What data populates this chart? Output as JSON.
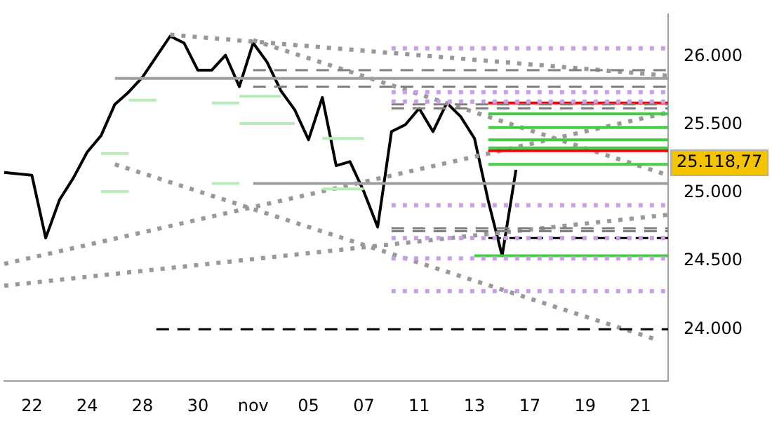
{
  "chart_data": {
    "type": "line",
    "marker": "none",
    "grid": false,
    "categories": [
      null,
      null,
      "22",
      null,
      null,
      null,
      "24",
      null,
      null,
      null,
      "28",
      null,
      null,
      null,
      "30",
      null,
      null,
      null,
      "nov",
      null,
      null,
      null,
      "05",
      null,
      null,
      null,
      "07",
      null,
      null,
      null,
      "11",
      null,
      null,
      null,
      "13",
      null,
      null,
      null,
      "17",
      null,
      null,
      null,
      "19",
      null,
      null,
      null,
      "21",
      null,
      null
    ],
    "ylim": [
      23620,
      26310
    ],
    "yticks": [
      {
        "value": 24000,
        "label": "24.000"
      },
      {
        "value": 24500,
        "label": "24.500"
      },
      {
        "value": 25000,
        "label": "25.000"
      },
      {
        "value": 25500,
        "label": "25.500"
      },
      {
        "value": 26000,
        "label": "26.000"
      }
    ],
    "annotations": [
      "25.118,77"
    ],
    "series": [
      {
        "type": "line",
        "color": "#c9a0e6",
        "line_style": "dotted",
        "values": [
          null,
          null,
          null,
          null,
          null,
          null,
          null,
          null,
          null,
          null,
          null,
          null,
          null,
          null,
          null,
          null,
          null,
          null,
          null,
          null,
          null,
          null,
          null,
          null,
          null,
          null,
          null,
          null,
          26060,
          null,
          null,
          null,
          null,
          null,
          null,
          null,
          null,
          null,
          null,
          null,
          null,
          null,
          null,
          null,
          null,
          null,
          null,
          null,
          26060
        ]
      },
      {
        "type": "line",
        "color": "#c9a0e6",
        "line_style": "dotted",
        "values": [
          null,
          null,
          null,
          null,
          null,
          null,
          null,
          null,
          null,
          null,
          null,
          null,
          null,
          null,
          null,
          null,
          null,
          null,
          null,
          null,
          null,
          null,
          null,
          null,
          null,
          null,
          null,
          null,
          25740,
          null,
          null,
          null,
          null,
          null,
          null,
          null,
          null,
          null,
          null,
          null,
          null,
          null,
          null,
          null,
          null,
          null,
          null,
          null,
          25740
        ]
      },
      {
        "type": "line",
        "color": "#c9a0e6",
        "line_style": "dotted",
        "values": [
          null,
          null,
          null,
          null,
          null,
          null,
          null,
          null,
          null,
          null,
          null,
          null,
          null,
          null,
          null,
          null,
          null,
          null,
          null,
          null,
          null,
          null,
          null,
          null,
          null,
          null,
          null,
          null,
          25670,
          null,
          null,
          null,
          null,
          null,
          null,
          null,
          null,
          null,
          null,
          null,
          null,
          null,
          null,
          null,
          null,
          null,
          null,
          null,
          25670
        ]
      },
      {
        "type": "line",
        "color": "#c9a0e6",
        "line_style": "dotted",
        "values": [
          null,
          null,
          null,
          null,
          null,
          null,
          null,
          null,
          null,
          null,
          null,
          null,
          null,
          null,
          null,
          null,
          null,
          null,
          null,
          null,
          null,
          null,
          null,
          null,
          null,
          null,
          null,
          null,
          24910,
          null,
          null,
          null,
          null,
          null,
          null,
          null,
          null,
          null,
          null,
          null,
          null,
          null,
          null,
          null,
          null,
          null,
          null,
          null,
          24910
        ]
      },
      {
        "type": "line",
        "color": "#c9a0e6",
        "line_style": "dotted",
        "values": [
          null,
          null,
          null,
          null,
          null,
          null,
          null,
          null,
          null,
          null,
          null,
          null,
          null,
          null,
          null,
          null,
          null,
          null,
          null,
          null,
          null,
          null,
          null,
          null,
          null,
          null,
          null,
          null,
          24670,
          null,
          null,
          null,
          null,
          null,
          null,
          null,
          null,
          null,
          null,
          null,
          null,
          null,
          null,
          null,
          null,
          null,
          null,
          null,
          24670
        ]
      },
      {
        "type": "line",
        "color": "#c9a0e6",
        "line_style": "dotted",
        "values": [
          null,
          null,
          null,
          null,
          null,
          null,
          null,
          null,
          null,
          null,
          null,
          null,
          null,
          null,
          null,
          null,
          null,
          null,
          null,
          null,
          null,
          null,
          null,
          null,
          null,
          null,
          null,
          null,
          24520,
          null,
          null,
          null,
          null,
          null,
          null,
          null,
          null,
          null,
          null,
          null,
          null,
          null,
          null,
          null,
          null,
          null,
          null,
          null,
          24520
        ]
      },
      {
        "type": "line",
        "color": "#c9a0e6",
        "line_style": "dotted",
        "values": [
          null,
          null,
          null,
          null,
          null,
          null,
          null,
          null,
          null,
          null,
          null,
          null,
          null,
          null,
          null,
          null,
          null,
          null,
          null,
          null,
          null,
          null,
          null,
          null,
          null,
          null,
          null,
          null,
          24280,
          null,
          null,
          null,
          null,
          null,
          null,
          null,
          null,
          null,
          null,
          null,
          null,
          null,
          null,
          null,
          null,
          null,
          null,
          null,
          24280
        ]
      },
      {
        "type": "line",
        "color": "#808080",
        "line_style": "dashed",
        "values": [
          null,
          null,
          null,
          null,
          null,
          null,
          null,
          null,
          null,
          null,
          null,
          null,
          null,
          null,
          null,
          null,
          null,
          null,
          25900,
          null,
          null,
          null,
          null,
          null,
          null,
          null,
          null,
          null,
          null,
          null,
          null,
          null,
          null,
          null,
          null,
          null,
          null,
          null,
          null,
          null,
          null,
          null,
          null,
          null,
          null,
          null,
          null,
          null,
          25900
        ]
      },
      {
        "type": "line",
        "color": "#808080",
        "line_style": "dashed",
        "values": [
          null,
          null,
          null,
          null,
          null,
          null,
          null,
          null,
          null,
          null,
          null,
          null,
          null,
          null,
          null,
          null,
          null,
          null,
          25780,
          null,
          null,
          null,
          null,
          null,
          null,
          null,
          null,
          null,
          null,
          null,
          null,
          null,
          null,
          null,
          null,
          null,
          null,
          null,
          null,
          null,
          null,
          null,
          null,
          null,
          null,
          null,
          null,
          null,
          25780
        ]
      },
      {
        "type": "line",
        "color": "#808080",
        "line_style": "dashed",
        "values": [
          null,
          null,
          null,
          null,
          null,
          null,
          null,
          null,
          null,
          null,
          null,
          null,
          null,
          null,
          null,
          null,
          null,
          null,
          null,
          null,
          null,
          null,
          null,
          null,
          null,
          null,
          null,
          null,
          25650,
          null,
          null,
          null,
          null,
          null,
          null,
          null,
          null,
          null,
          null,
          null,
          null,
          null,
          null,
          null,
          null,
          null,
          null,
          null,
          25650
        ]
      },
      {
        "type": "line",
        "color": "#808080",
        "line_style": "dashed",
        "values": [
          null,
          null,
          null,
          null,
          null,
          null,
          null,
          null,
          null,
          null,
          null,
          null,
          null,
          null,
          null,
          null,
          null,
          null,
          null,
          null,
          null,
          null,
          null,
          null,
          null,
          null,
          null,
          null,
          25620,
          null,
          null,
          null,
          null,
          null,
          null,
          null,
          null,
          null,
          null,
          null,
          null,
          null,
          null,
          null,
          null,
          null,
          null,
          null,
          25620
        ]
      },
      {
        "type": "line",
        "color": "#808080",
        "line_style": "dashed",
        "values": [
          null,
          null,
          null,
          null,
          null,
          null,
          null,
          null,
          null,
          null,
          null,
          null,
          null,
          null,
          null,
          null,
          null,
          null,
          null,
          null,
          null,
          null,
          null,
          null,
          null,
          null,
          null,
          null,
          24740,
          null,
          null,
          null,
          null,
          null,
          null,
          null,
          null,
          null,
          null,
          null,
          null,
          null,
          null,
          null,
          null,
          null,
          null,
          null,
          24740
        ]
      },
      {
        "type": "line",
        "color": "#808080",
        "line_style": "dashed",
        "values": [
          null,
          null,
          null,
          null,
          null,
          null,
          null,
          null,
          null,
          null,
          null,
          null,
          null,
          null,
          null,
          null,
          null,
          null,
          null,
          null,
          null,
          null,
          null,
          null,
          null,
          null,
          null,
          null,
          24720,
          null,
          null,
          null,
          null,
          null,
          null,
          null,
          null,
          null,
          null,
          null,
          null,
          null,
          null,
          null,
          null,
          null,
          null,
          null,
          24720
        ]
      },
      {
        "type": "line",
        "color": "#a0a0a0",
        "line_style": "solid",
        "values": [
          null,
          null,
          null,
          null,
          null,
          null,
          null,
          null,
          25840,
          null,
          null,
          null,
          null,
          null,
          null,
          null,
          null,
          null,
          null,
          null,
          null,
          null,
          null,
          null,
          null,
          null,
          null,
          null,
          null,
          null,
          null,
          null,
          null,
          null,
          null,
          null,
          null,
          null,
          null,
          null,
          null,
          null,
          null,
          null,
          null,
          null,
          null,
          null,
          25840
        ]
      },
      {
        "type": "line",
        "color": "#a0a0a0",
        "line_style": "solid",
        "values": [
          null,
          null,
          null,
          null,
          null,
          null,
          null,
          null,
          null,
          null,
          null,
          null,
          null,
          null,
          null,
          null,
          null,
          null,
          25070,
          null,
          null,
          null,
          null,
          null,
          null,
          null,
          null,
          null,
          null,
          null,
          null,
          null,
          null,
          null,
          null,
          null,
          null,
          null,
          null,
          null,
          null,
          null,
          null,
          null,
          null,
          null,
          null,
          null,
          25070
        ]
      },
      {
        "type": "line",
        "color": "#000000",
        "line_style": "dashed",
        "values": [
          null,
          null,
          null,
          null,
          null,
          null,
          null,
          null,
          null,
          null,
          null,
          24000,
          null,
          null,
          null,
          null,
          null,
          null,
          null,
          null,
          null,
          null,
          null,
          null,
          null,
          null,
          null,
          null,
          null,
          null,
          null,
          null,
          null,
          null,
          null,
          null,
          null,
          null,
          null,
          null,
          null,
          null,
          null,
          null,
          null,
          null,
          null,
          null,
          24000
        ]
      },
      {
        "type": "line",
        "color": "#000000",
        "line_style": "dashed",
        "values": [
          null,
          null,
          null,
          null,
          null,
          null,
          null,
          null,
          null,
          null,
          null,
          null,
          null,
          null,
          null,
          null,
          null,
          null,
          null,
          null,
          null,
          null,
          null,
          null,
          null,
          null,
          null,
          null,
          null,
          null,
          null,
          null,
          null,
          null,
          null,
          24670,
          null,
          null,
          null,
          null,
          null,
          null,
          null,
          null,
          null,
          null,
          null,
          null,
          24670
        ]
      },
      {
        "type": "line",
        "color": "#44cc44",
        "line_style": "solid",
        "values": [
          null,
          null,
          null,
          null,
          null,
          null,
          null,
          null,
          null,
          null,
          null,
          null,
          null,
          null,
          null,
          null,
          null,
          null,
          null,
          null,
          null,
          null,
          null,
          null,
          null,
          null,
          null,
          null,
          null,
          null,
          null,
          null,
          null,
          null,
          null,
          25580,
          null,
          null,
          null,
          null,
          null,
          null,
          null,
          null,
          null,
          null,
          null,
          null,
          25580
        ]
      },
      {
        "type": "line",
        "color": "#44cc44",
        "line_style": "solid",
        "values": [
          null,
          null,
          null,
          null,
          null,
          null,
          null,
          null,
          null,
          null,
          null,
          null,
          null,
          null,
          null,
          null,
          null,
          null,
          null,
          null,
          null,
          null,
          null,
          null,
          null,
          null,
          null,
          null,
          null,
          null,
          null,
          null,
          null,
          null,
          null,
          25480,
          null,
          null,
          null,
          null,
          null,
          null,
          null,
          null,
          null,
          null,
          null,
          null,
          25480
        ]
      },
      {
        "type": "line",
        "color": "#44cc44",
        "line_style": "solid",
        "values": [
          null,
          null,
          null,
          null,
          null,
          null,
          null,
          null,
          null,
          null,
          null,
          null,
          null,
          null,
          null,
          null,
          null,
          null,
          null,
          null,
          null,
          null,
          null,
          null,
          null,
          null,
          null,
          null,
          null,
          null,
          null,
          null,
          null,
          null,
          null,
          25390,
          null,
          null,
          null,
          null,
          null,
          null,
          null,
          null,
          null,
          null,
          null,
          null,
          25390
        ]
      },
      {
        "type": "line",
        "color": "#44cc44",
        "line_style": "solid",
        "values": [
          null,
          null,
          null,
          null,
          null,
          null,
          null,
          null,
          null,
          null,
          null,
          null,
          null,
          null,
          null,
          null,
          null,
          null,
          null,
          null,
          null,
          null,
          null,
          null,
          null,
          null,
          null,
          null,
          null,
          null,
          null,
          null,
          null,
          null,
          null,
          25330,
          null,
          null,
          null,
          null,
          null,
          null,
          null,
          null,
          null,
          null,
          null,
          null,
          25330
        ]
      },
      {
        "type": "line",
        "color": "#44cc44",
        "line_style": "solid",
        "values": [
          null,
          null,
          null,
          null,
          null,
          null,
          null,
          null,
          null,
          null,
          null,
          null,
          null,
          null,
          null,
          null,
          null,
          null,
          null,
          null,
          null,
          null,
          null,
          null,
          null,
          null,
          null,
          null,
          null,
          null,
          null,
          null,
          null,
          null,
          null,
          25210,
          null,
          null,
          null,
          null,
          null,
          null,
          null,
          null,
          null,
          null,
          null,
          null,
          25210
        ]
      },
      {
        "type": "line",
        "color": "#44cc44",
        "line_style": "solid",
        "values": [
          null,
          null,
          null,
          null,
          null,
          null,
          null,
          null,
          null,
          null,
          null,
          null,
          null,
          null,
          null,
          null,
          null,
          null,
          null,
          null,
          null,
          null,
          null,
          null,
          null,
          null,
          null,
          null,
          null,
          null,
          null,
          null,
          null,
          null,
          24540,
          null,
          null,
          null,
          null,
          null,
          null,
          null,
          null,
          null,
          null,
          null,
          null,
          null,
          24540
        ]
      },
      {
        "type": "line",
        "color": "#ff0000",
        "line_style": "solid",
        "values": [
          null,
          null,
          null,
          null,
          null,
          null,
          null,
          null,
          null,
          null,
          null,
          null,
          null,
          null,
          null,
          null,
          null,
          null,
          null,
          null,
          null,
          null,
          null,
          null,
          null,
          null,
          null,
          null,
          null,
          null,
          null,
          null,
          null,
          null,
          null,
          25660,
          null,
          null,
          null,
          null,
          null,
          null,
          null,
          null,
          null,
          null,
          null,
          null,
          25660
        ]
      },
      {
        "type": "line",
        "color": "#ff0000",
        "line_style": "solid",
        "values": [
          null,
          null,
          null,
          null,
          null,
          null,
          null,
          null,
          null,
          null,
          null,
          null,
          null,
          null,
          null,
          null,
          null,
          null,
          null,
          null,
          null,
          null,
          null,
          null,
          null,
          null,
          null,
          null,
          null,
          null,
          null,
          null,
          null,
          null,
          null,
          25310,
          null,
          null,
          null,
          null,
          null,
          null,
          null,
          null,
          null,
          null,
          null,
          null,
          25310
        ]
      },
      {
        "type": "line",
        "color": "#b8ecb8",
        "line_style": "solid",
        "values": [
          null,
          null,
          null,
          null,
          null,
          null,
          null,
          null,
          null,
          25680,
          null,
          25680,
          null,
          null,
          null,
          null,
          null,
          null,
          null,
          null,
          null,
          null,
          null,
          null,
          null,
          null,
          null,
          null,
          null,
          null,
          null,
          null,
          null,
          null,
          null,
          null,
          null,
          null,
          null,
          null,
          null,
          null,
          null,
          null,
          null,
          null,
          null,
          null,
          null
        ]
      },
      {
        "type": "line",
        "color": "#b8ecb8",
        "line_style": "solid",
        "values": [
          null,
          null,
          null,
          null,
          null,
          null,
          null,
          null,
          null,
          null,
          null,
          null,
          null,
          null,
          null,
          25660,
          null,
          25660,
          null,
          null,
          null,
          null,
          null,
          null,
          null,
          null,
          null,
          null,
          null,
          null,
          null,
          null,
          null,
          null,
          null,
          null,
          null,
          null,
          null,
          null,
          null,
          null,
          null,
          null,
          null,
          null,
          null,
          null,
          null
        ]
      },
      {
        "type": "line",
        "color": "#b8ecb8",
        "line_style": "solid",
        "values": [
          null,
          null,
          null,
          null,
          null,
          null,
          null,
          null,
          null,
          null,
          null,
          null,
          null,
          null,
          null,
          null,
          null,
          25710,
          null,
          null,
          25710,
          null,
          null,
          null,
          null,
          null,
          null,
          null,
          null,
          null,
          null,
          null,
          null,
          null,
          null,
          null,
          null,
          null,
          null,
          null,
          null,
          null,
          null,
          null,
          null,
          null,
          null,
          null,
          null
        ]
      },
      {
        "type": "line",
        "color": "#b8ecb8",
        "line_style": "solid",
        "values": [
          null,
          null,
          null,
          null,
          null,
          null,
          null,
          null,
          null,
          null,
          null,
          null,
          null,
          null,
          null,
          null,
          null,
          25510,
          null,
          null,
          null,
          25510,
          null,
          null,
          null,
          null,
          null,
          null,
          null,
          null,
          null,
          null,
          null,
          null,
          null,
          null,
          null,
          null,
          null,
          null,
          null,
          null,
          null,
          null,
          null,
          null,
          null,
          null,
          null
        ]
      },
      {
        "type": "line",
        "color": "#b8ecb8",
        "line_style": "solid",
        "values": [
          null,
          null,
          null,
          null,
          null,
          null,
          null,
          25290,
          null,
          25290,
          null,
          null,
          null,
          null,
          null,
          null,
          null,
          null,
          null,
          null,
          null,
          null,
          null,
          null,
          null,
          null,
          null,
          null,
          null,
          null,
          null,
          null,
          null,
          null,
          null,
          null,
          null,
          null,
          null,
          null,
          null,
          null,
          null,
          null,
          null,
          null,
          null,
          null,
          null
        ]
      },
      {
        "type": "line",
        "color": "#b8ecb8",
        "line_style": "solid",
        "values": [
          null,
          null,
          null,
          null,
          null,
          null,
          null,
          25010,
          null,
          25010,
          null,
          null,
          null,
          null,
          null,
          null,
          null,
          null,
          null,
          null,
          null,
          null,
          null,
          null,
          null,
          null,
          null,
          null,
          null,
          null,
          null,
          null,
          null,
          null,
          null,
          null,
          null,
          null,
          null,
          null,
          null,
          null,
          null,
          null,
          null,
          null,
          null,
          null,
          null
        ]
      },
      {
        "type": "line",
        "color": "#b8ecb8",
        "line_style": "solid",
        "values": [
          null,
          null,
          null,
          null,
          null,
          null,
          null,
          null,
          null,
          null,
          null,
          null,
          null,
          null,
          null,
          25070,
          null,
          25070,
          null,
          null,
          null,
          null,
          null,
          null,
          null,
          null,
          null,
          null,
          null,
          null,
          null,
          null,
          null,
          null,
          null,
          null,
          null,
          null,
          null,
          null,
          null,
          null,
          null,
          null,
          null,
          null,
          null,
          null,
          null
        ]
      },
      {
        "type": "line",
        "color": "#b8ecb8",
        "line_style": "solid",
        "values": [
          null,
          null,
          null,
          null,
          null,
          null,
          null,
          null,
          null,
          null,
          null,
          null,
          null,
          null,
          null,
          null,
          null,
          null,
          null,
          null,
          null,
          null,
          null,
          25400,
          null,
          null,
          25400,
          null,
          null,
          null,
          null,
          null,
          null,
          null,
          null,
          null,
          null,
          null,
          null,
          null,
          null,
          null,
          null,
          null,
          null,
          null,
          null,
          null,
          null
        ]
      },
      {
        "type": "line",
        "color": "#b8ecb8",
        "line_style": "solid",
        "values": [
          null,
          null,
          null,
          null,
          null,
          null,
          null,
          null,
          null,
          null,
          null,
          null,
          null,
          null,
          null,
          null,
          null,
          null,
          null,
          null,
          null,
          null,
          null,
          25030,
          null,
          null,
          25030,
          null,
          null,
          null,
          null,
          null,
          null,
          null,
          null,
          null,
          null,
          null,
          null,
          null,
          null,
          null,
          null,
          null,
          null,
          null,
          null,
          null,
          null
        ]
      },
      {
        "type": "line",
        "color": "#999999",
        "line_style": "dotted",
        "values": [
          null,
          null,
          null,
          null,
          null,
          null,
          null,
          null,
          null,
          null,
          null,
          null,
          26160,
          null,
          null,
          null,
          null,
          null,
          null,
          null,
          null,
          null,
          null,
          null,
          null,
          null,
          null,
          null,
          null,
          null,
          null,
          null,
          null,
          null,
          null,
          null,
          null,
          null,
          null,
          null,
          null,
          null,
          null,
          null,
          null,
          null,
          null,
          null,
          25860
        ]
      },
      {
        "type": "line",
        "color": "#999999",
        "line_style": "dotted",
        "values": [
          null,
          null,
          null,
          null,
          null,
          null,
          null,
          null,
          null,
          null,
          null,
          null,
          null,
          null,
          null,
          null,
          null,
          null,
          26120,
          null,
          null,
          null,
          null,
          null,
          null,
          null,
          null,
          null,
          null,
          null,
          null,
          null,
          null,
          null,
          null,
          null,
          null,
          null,
          null,
          null,
          null,
          null,
          null,
          null,
          null,
          null,
          null,
          null,
          25130
        ]
      },
      {
        "type": "line",
        "color": "#999999",
        "line_style": "dotted",
        "values": [
          null,
          null,
          null,
          null,
          null,
          null,
          null,
          null,
          25210,
          null,
          null,
          null,
          null,
          null,
          null,
          null,
          null,
          null,
          null,
          null,
          null,
          null,
          null,
          null,
          null,
          null,
          null,
          null,
          null,
          null,
          null,
          null,
          null,
          null,
          null,
          null,
          null,
          null,
          null,
          null,
          null,
          null,
          null,
          null,
          null,
          null,
          null,
          23930,
          null
        ]
      },
      {
        "type": "line",
        "color": "#999999",
        "line_style": "dotted",
        "values": [
          24480,
          null,
          null,
          null,
          null,
          null,
          null,
          null,
          null,
          null,
          null,
          null,
          null,
          null,
          null,
          null,
          null,
          null,
          null,
          null,
          null,
          null,
          null,
          null,
          null,
          null,
          null,
          null,
          null,
          null,
          null,
          null,
          null,
          null,
          null,
          null,
          null,
          null,
          null,
          null,
          null,
          null,
          null,
          null,
          null,
          null,
          null,
          null,
          25590
        ]
      },
      {
        "type": "line",
        "color": "#999999",
        "line_style": "dotted",
        "values": [
          24320,
          null,
          null,
          null,
          null,
          null,
          null,
          null,
          null,
          null,
          null,
          null,
          null,
          null,
          null,
          null,
          null,
          null,
          null,
          null,
          null,
          null,
          null,
          null,
          null,
          null,
          null,
          null,
          null,
          null,
          null,
          null,
          null,
          null,
          null,
          null,
          null,
          null,
          null,
          null,
          null,
          null,
          null,
          null,
          null,
          null,
          null,
          null,
          24840
        ]
      },
      {
        "type": "line",
        "color": "#000000",
        "line_style": "solid",
        "values": [
          25150,
          25140,
          25130,
          24670,
          24950,
          25110,
          25300,
          25420,
          25650,
          25740,
          25850,
          26000,
          26150,
          26100,
          25900,
          25900,
          26010,
          25780,
          26100,
          25960,
          25750,
          25610,
          25390,
          25700,
          25200,
          25230,
          25010,
          24750,
          25450,
          25500,
          25620,
          25450,
          25660,
          25560,
          25400,
          24940,
          24540,
          25170,
          null,
          null,
          null,
          null,
          null,
          null,
          null,
          null,
          null,
          null,
          null
        ]
      }
    ]
  }
}
